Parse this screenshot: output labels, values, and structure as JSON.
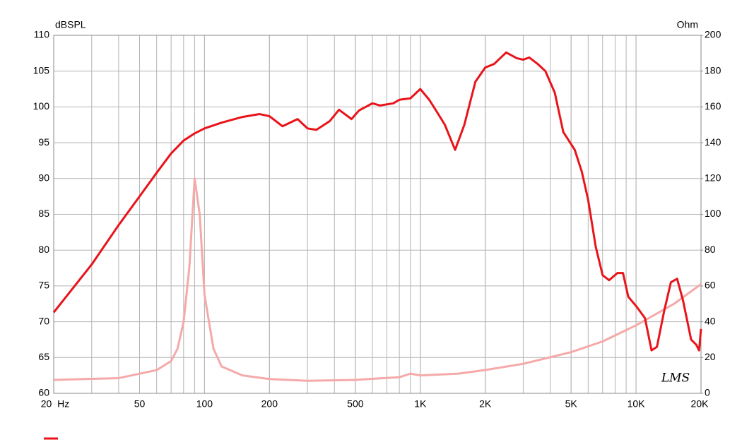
{
  "chart_data": {
    "type": "line",
    "y_label": "dBSPL",
    "y2_label": "Ohm",
    "watermark": "LMS",
    "xscale": "log",
    "grid": true,
    "xlim": [
      20,
      20000
    ],
    "ylim": [
      60,
      110
    ],
    "y2lim": [
      0,
      200
    ],
    "xticks": [
      {
        "value": 20,
        "label": "20  Hz"
      },
      50,
      100,
      200,
      500,
      {
        "value": 1000,
        "label": "1K"
      },
      {
        "value": 2000,
        "label": "2K"
      },
      {
        "value": 5000,
        "label": "5K"
      },
      {
        "value": 10000,
        "label": "10K"
      },
      {
        "value": 20000,
        "label": "20K"
      }
    ],
    "yticks": [
      60,
      65,
      70,
      75,
      80,
      85,
      90,
      95,
      100,
      105,
      110
    ],
    "y2ticks": [
      0,
      20,
      40,
      60,
      80,
      100,
      120,
      140,
      160,
      180,
      200
    ],
    "series": [
      {
        "color": "#e8141a",
        "axis": "y",
        "x": [
          20,
          30,
          40,
          50,
          60,
          70,
          80,
          90,
          100,
          120,
          150,
          180,
          200,
          230,
          270,
          300,
          330,
          380,
          420,
          480,
          520,
          600,
          650,
          750,
          800,
          900,
          1000,
          1100,
          1200,
          1300,
          1450,
          1600,
          1800,
          2000,
          2200,
          2500,
          2800,
          3000,
          3200,
          3500,
          3800,
          4200,
          4600,
          5200,
          5600,
          6000,
          6500,
          7000,
          7500,
          8200,
          8700,
          9200,
          10000,
          11000,
          11800,
          12500,
          13500,
          14500,
          15500,
          16500,
          18000,
          19000,
          19600,
          20000
        ],
        "values": [
          71.3,
          78,
          83.5,
          87.5,
          90.8,
          93.5,
          95.3,
          96.3,
          97,
          97.8,
          98.6,
          99,
          98.7,
          97.3,
          98.3,
          97,
          96.8,
          98,
          99.6,
          98.3,
          99.5,
          100.5,
          100.2,
          100.5,
          101,
          101.2,
          102.5,
          101,
          99.2,
          97.5,
          94,
          97.5,
          103.5,
          105.5,
          106,
          107.6,
          106.8,
          106.6,
          106.9,
          106,
          105,
          102,
          96.5,
          94,
          91,
          87,
          80.5,
          76.5,
          75.8,
          76.8,
          76.8,
          73.5,
          72.2,
          70.5,
          66,
          66.5,
          71.5,
          75.5,
          76,
          73,
          67.5,
          66.8,
          66,
          69
        ]
      },
      {
        "color": "#f5a9a9",
        "axis": "y2",
        "x": [
          20,
          40,
          60,
          70,
          75,
          80,
          85,
          90,
          95,
          100,
          110,
          120,
          150,
          200,
          300,
          500,
          800,
          900,
          1000,
          1500,
          2000,
          3000,
          5000,
          7000,
          10000,
          15000,
          20000
        ],
        "values": [
          7.5,
          8.5,
          13,
          18,
          25,
          40,
          70,
          120,
          100,
          55,
          25,
          15,
          10,
          8,
          7,
          7.5,
          9,
          11,
          10,
          11,
          13,
          16.5,
          23,
          29,
          38,
          50,
          61
        ]
      }
    ]
  }
}
